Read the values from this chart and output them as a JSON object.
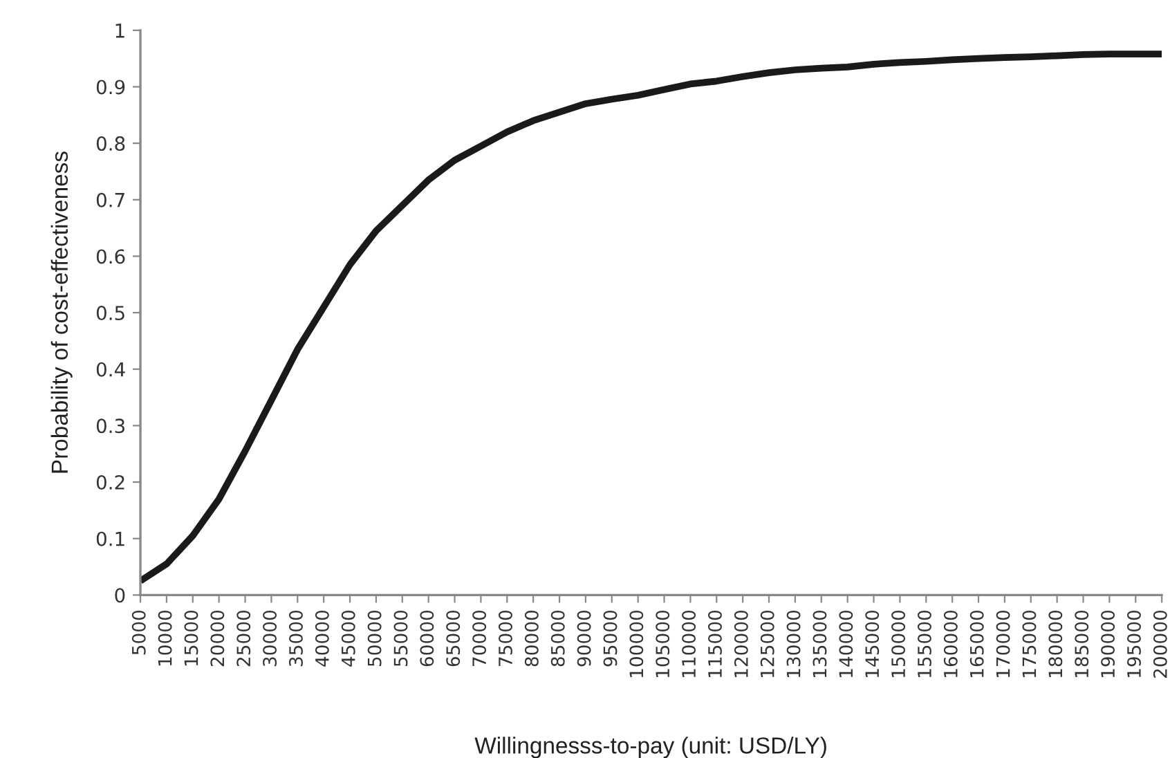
{
  "chart_data": {
    "type": "line",
    "xlabel": "Willingnesss-to-pay (unit: USD/LY)",
    "ylabel": "Probability of cost-effectiveness",
    "categories": [
      "5000",
      "10000",
      "15000",
      "20000",
      "25000",
      "30000",
      "35000",
      "40000",
      "45000",
      "50000",
      "55000",
      "60000",
      "65000",
      "70000",
      "75000",
      "80000",
      "85000",
      "90000",
      "95000",
      "100000",
      "105000",
      "110000",
      "115000",
      "120000",
      "125000",
      "130000",
      "135000",
      "140000",
      "145000",
      "150000",
      "155000",
      "160000",
      "165000",
      "170000",
      "175000",
      "180000",
      "185000",
      "190000",
      "195000",
      "200000"
    ],
    "series": [
      {
        "color": "#1a1a1a",
        "values": [
          0.025,
          0.055,
          0.105,
          0.17,
          0.255,
          0.345,
          0.435,
          0.51,
          0.585,
          0.645,
          0.69,
          0.735,
          0.77,
          0.795,
          0.82,
          0.84,
          0.855,
          0.87,
          0.878,
          0.885,
          0.895,
          0.905,
          0.91,
          0.918,
          0.925,
          0.93,
          0.933,
          0.935,
          0.94,
          0.943,
          0.945,
          0.948,
          0.95,
          0.952,
          0.953,
          0.955,
          0.957,
          0.958,
          0.958,
          0.958
        ]
      }
    ],
    "ylim": [
      0,
      1
    ],
    "yticks": [
      0,
      0.1,
      0.2,
      0.3,
      0.4,
      0.5,
      0.6,
      0.7,
      0.8,
      0.9,
      1
    ],
    "grid": false,
    "legend": false,
    "line_style": "solid",
    "marker": "none"
  }
}
